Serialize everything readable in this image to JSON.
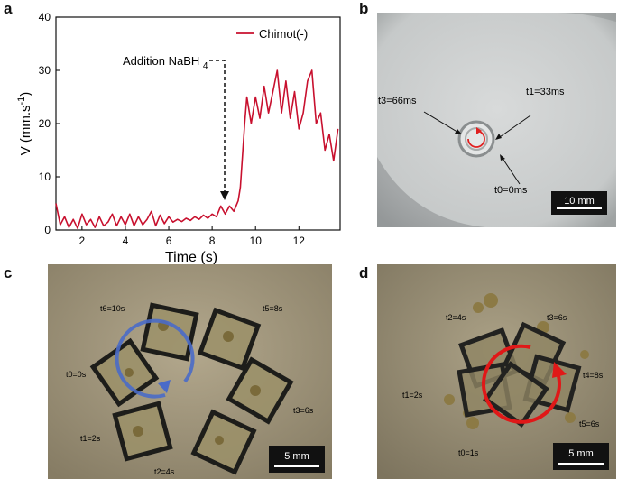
{
  "panels": {
    "a": {
      "label": "a"
    },
    "b": {
      "label": "b",
      "annotations": {
        "t3": "t3=66ms",
        "t1": "t1=33ms",
        "t0": "t0=0ms"
      },
      "scalebar": "10 mm",
      "colors": {
        "background": "#c9cccc",
        "arrow": "#e02020"
      }
    },
    "c": {
      "label": "c",
      "annotations": {
        "t6": "t6=10s",
        "t5": "t5=8s",
        "t0": "t0=0s",
        "t3": "t3=6s",
        "t1": "t1=2s",
        "t2": "t2=4s"
      },
      "scalebar": "5 mm",
      "colors": {
        "background": "#a59a80",
        "arrow": "#4a6bc8"
      }
    },
    "d": {
      "label": "d",
      "annotations": {
        "t2": "t2=4s",
        "t3": "t3=6s",
        "t4": "t4=8s",
        "t1": "t1=2s",
        "t5": "t5=6s",
        "t0": "t0=1s"
      },
      "scalebar": "5 mm",
      "colors": {
        "background": "#9c9279",
        "arrow": "#e01818"
      }
    }
  },
  "chart_data": {
    "type": "line",
    "title": "",
    "xlabel": "Time (s)",
    "ylabel": "V (mm.s-1)",
    "ylabel_main": "V (mm.s",
    "ylabel_sup": "-1",
    "ylabel_close": ")",
    "xlim": [
      0.8,
      13.9
    ],
    "ylim": [
      0,
      40
    ],
    "xticks": [
      2,
      4,
      6,
      8,
      10,
      12
    ],
    "yticks": [
      0,
      10,
      20,
      30,
      40
    ],
    "legend": {
      "position": "top-right",
      "entries": [
        "Chimot(-)"
      ]
    },
    "annotation": {
      "text": "Addition NaBH",
      "subscript": "4",
      "x": 8.5,
      "y": 5.5
    },
    "series": [
      {
        "name": "Chimot(-)",
        "color": "#c8102e",
        "x": [
          0.8,
          1.0,
          1.2,
          1.4,
          1.6,
          1.8,
          2.0,
          2.2,
          2.4,
          2.6,
          2.8,
          3.0,
          3.2,
          3.4,
          3.6,
          3.8,
          4.0,
          4.2,
          4.4,
          4.6,
          4.8,
          5.0,
          5.2,
          5.4,
          5.6,
          5.8,
          6.0,
          6.2,
          6.4,
          6.6,
          6.8,
          7.0,
          7.2,
          7.4,
          7.6,
          7.8,
          8.0,
          8.2,
          8.4,
          8.6,
          8.8,
          9.0,
          9.2,
          9.3,
          9.4,
          9.5,
          9.6,
          9.8,
          10.0,
          10.2,
          10.4,
          10.6,
          10.8,
          11.0,
          11.2,
          11.4,
          11.6,
          11.8,
          12.0,
          12.2,
          12.4,
          12.6,
          12.8,
          13.0,
          13.2,
          13.4,
          13.6,
          13.8
        ],
        "y": [
          5,
          1,
          2.5,
          0.5,
          2,
          0.3,
          3,
          1,
          2,
          0.5,
          2.5,
          0.8,
          1.5,
          3,
          0.8,
          2.5,
          1,
          3,
          0.8,
          2.5,
          1,
          2,
          3.5,
          0.8,
          2.8,
          1.2,
          2.5,
          1.5,
          2,
          1.6,
          2.2,
          1.8,
          2.5,
          2,
          2.8,
          2.2,
          3,
          2.5,
          4.5,
          3,
          4.5,
          3.5,
          5.5,
          8,
          14,
          20,
          25,
          20,
          25,
          21,
          27,
          22,
          26,
          30,
          22,
          28,
          21,
          26,
          19,
          22,
          28,
          30,
          20,
          22,
          15,
          18,
          13,
          19
        ]
      }
    ]
  }
}
